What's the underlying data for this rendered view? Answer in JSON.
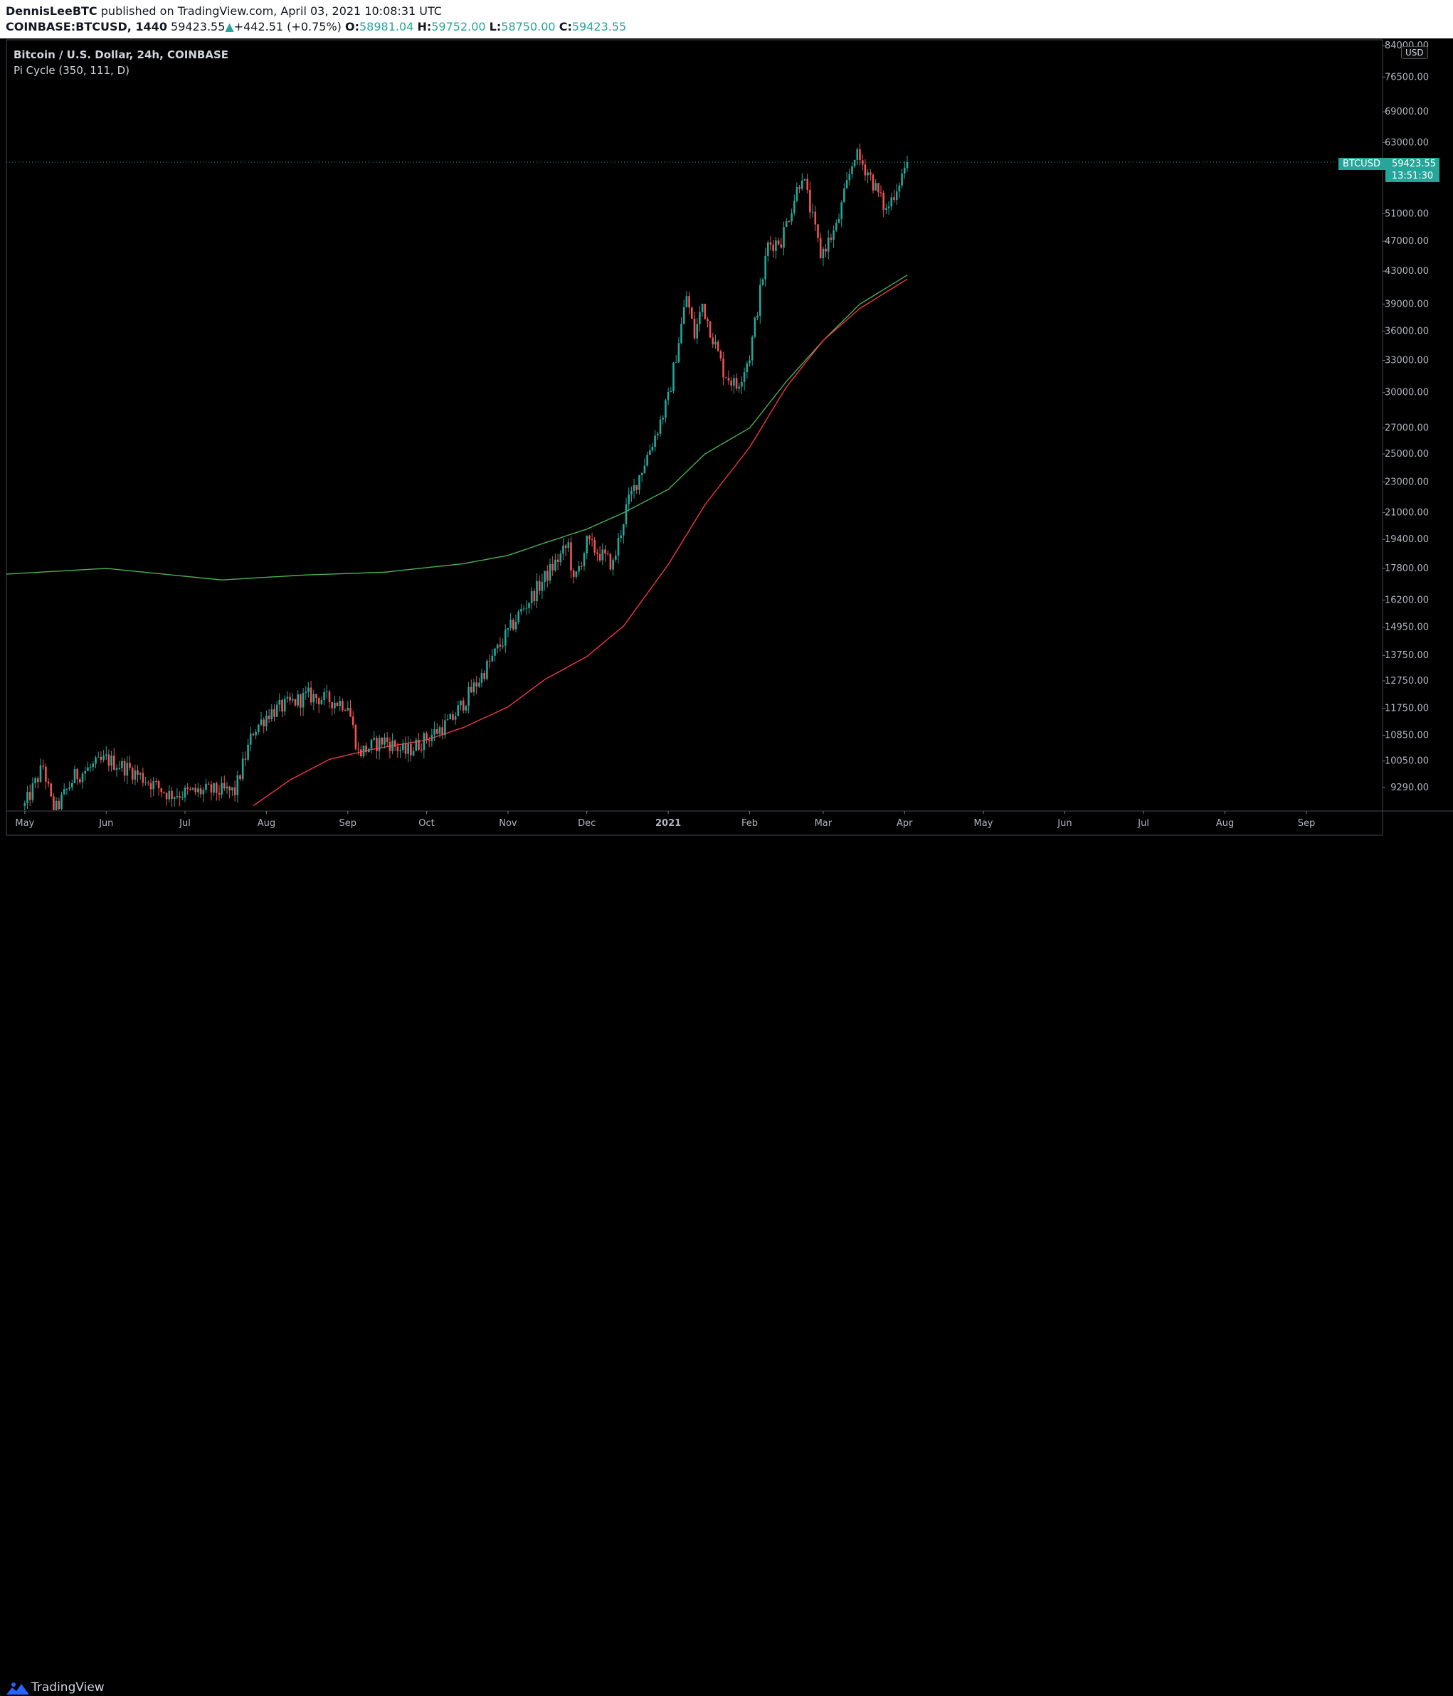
{
  "header": {
    "author": "DennisLeeBTC",
    "published_text": "published on TradingView.com, April 03, 2021 10:08:31 UTC",
    "symbol": "COINBASE:BTCUSD, 1440",
    "last": "59423.55",
    "change_arrow": "▲",
    "change": "+442.51 (+0.75%)",
    "o_label": "O:",
    "o_value": "58981.04",
    "h_label": "H:",
    "h_value": "59752.00",
    "l_label": "L:",
    "l_value": "58750.00",
    "c_label": "C:",
    "c_value": "59423.55"
  },
  "chart_data": {
    "type": "candlestick",
    "title": "Bitcoin / U.S. Dollar, 24h, COINBASE",
    "indicator": "Pi Cycle (350, 111, D)",
    "currency": "USD",
    "scale": "log",
    "ylim": [
      9000,
      84000
    ],
    "y_ticks": [
      "84000.00",
      "76500.00",
      "69000.00",
      "63000.00",
      "51000.00",
      "47000.00",
      "43000.00",
      "39000.00",
      "36000.00",
      "33000.00",
      "30000.00",
      "27000.00",
      "25000.00",
      "23000.00",
      "21000.00",
      "19400.00",
      "17800.00",
      "16200.00",
      "14950.00",
      "13750.00",
      "12750.00",
      "11750.00",
      "10850.00",
      "10050.00",
      "9290.00"
    ],
    "x_ticks": [
      "May",
      "Jun",
      "Jul",
      "Aug",
      "Sep",
      "Oct",
      "Nov",
      "Dec",
      "2021",
      "Feb",
      "Mar",
      "Apr",
      "May",
      "Jun",
      "Jul",
      "Aug",
      "Sep"
    ],
    "x_range": [
      "2020-04-24",
      "2021-09-30"
    ],
    "last_price": {
      "symbol": "BTCUSD",
      "value": "59423.55",
      "countdown": "13:51:30"
    },
    "price_anchors": [
      [
        "2020-05-01",
        8800
      ],
      [
        "2020-05-08",
        9900
      ],
      [
        "2020-05-12",
        8600
      ],
      [
        "2020-05-20",
        9600
      ],
      [
        "2020-06-01",
        10100
      ],
      [
        "2020-06-10",
        9800
      ],
      [
        "2020-06-25",
        9100
      ],
      [
        "2020-07-10",
        9200
      ],
      [
        "2020-07-20",
        9180
      ],
      [
        "2020-07-27",
        11000
      ],
      [
        "2020-08-02",
        11600
      ],
      [
        "2020-08-17",
        12200
      ],
      [
        "2020-09-01",
        11900
      ],
      [
        "2020-09-05",
        10300
      ],
      [
        "2020-09-15",
        10700
      ],
      [
        "2020-09-23",
        10300
      ],
      [
        "2020-10-10",
        11300
      ],
      [
        "2020-10-21",
        12800
      ],
      [
        "2020-11-05",
        15500
      ],
      [
        "2020-11-24",
        19100
      ],
      [
        "2020-11-26",
        17000
      ],
      [
        "2020-12-01",
        19200
      ],
      [
        "2020-12-11",
        18000
      ],
      [
        "2020-12-16",
        21300
      ],
      [
        "2020-12-27",
        26400
      ],
      [
        "2021-01-01",
        29400
      ],
      [
        "2021-01-08",
        40000
      ],
      [
        "2021-01-11",
        35500
      ],
      [
        "2021-01-14",
        39000
      ],
      [
        "2021-01-22",
        32000
      ],
      [
        "2021-01-27",
        30500
      ],
      [
        "2021-02-01",
        33500
      ],
      [
        "2021-02-08",
        46500
      ],
      [
        "2021-02-13",
        47200
      ],
      [
        "2021-02-21",
        57500
      ],
      [
        "2021-02-28",
        45200
      ],
      [
        "2021-03-06",
        48900
      ],
      [
        "2021-03-13",
        61000
      ],
      [
        "2021-03-18",
        57800
      ],
      [
        "2021-03-25",
        51400
      ],
      [
        "2021-04-02",
        59423
      ]
    ],
    "series": [
      {
        "name": "350 MA × 2",
        "color": "#4caf50",
        "points": [
          [
            "2020-04-24",
            17500
          ],
          [
            "2020-06-01",
            17800
          ],
          [
            "2020-07-15",
            17200
          ],
          [
            "2020-08-15",
            17450
          ],
          [
            "2020-09-15",
            17600
          ],
          [
            "2020-10-15",
            18050
          ],
          [
            "2020-11-01",
            18500
          ],
          [
            "2020-11-15",
            19200
          ],
          [
            "2020-12-01",
            20000
          ],
          [
            "2020-12-15",
            21000
          ],
          [
            "2021-01-01",
            22500
          ],
          [
            "2021-01-15",
            25000
          ],
          [
            "2021-02-01",
            27000
          ],
          [
            "2021-02-15",
            31000
          ],
          [
            "2021-03-01",
            35000
          ],
          [
            "2021-03-15",
            39000
          ],
          [
            "2021-04-02",
            42500
          ]
        ]
      },
      {
        "name": "111 MA",
        "color": "#f23645",
        "points": [
          [
            "2020-07-27",
            8800
          ],
          [
            "2020-08-10",
            9500
          ],
          [
            "2020-08-25",
            10100
          ],
          [
            "2020-09-10",
            10400
          ],
          [
            "2020-10-01",
            10700
          ],
          [
            "2020-10-15",
            11100
          ],
          [
            "2020-11-01",
            11800
          ],
          [
            "2020-11-15",
            12800
          ],
          [
            "2020-12-01",
            13700
          ],
          [
            "2020-12-15",
            15000
          ],
          [
            "2021-01-01",
            18000
          ],
          [
            "2021-01-15",
            21500
          ],
          [
            "2021-02-01",
            25500
          ],
          [
            "2021-02-15",
            30500
          ],
          [
            "2021-03-01",
            35000
          ],
          [
            "2021-03-15",
            38500
          ],
          [
            "2021-04-02",
            42000
          ]
        ]
      }
    ]
  },
  "footer": {
    "brand": "TradingView"
  }
}
